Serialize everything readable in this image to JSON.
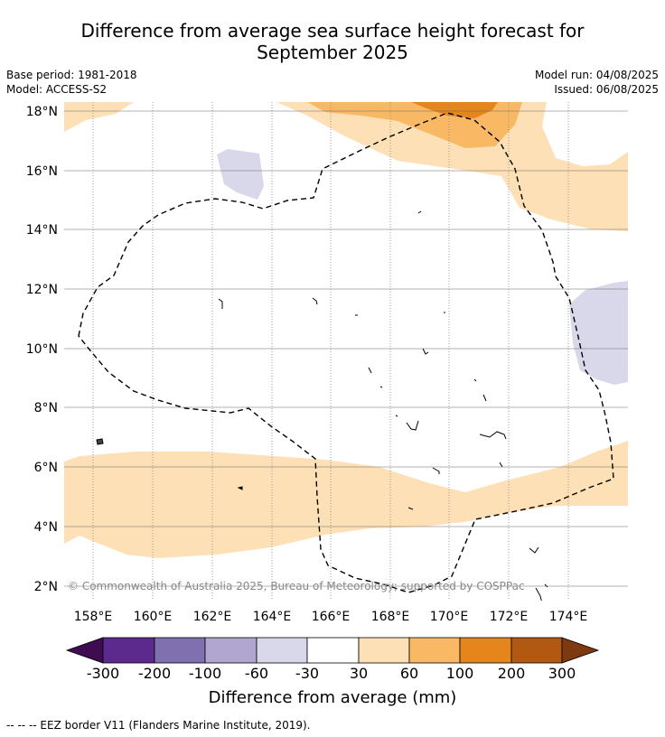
{
  "title": {
    "line1": "Difference from average sea surface height forecast for",
    "line2": "September 2025"
  },
  "meta": {
    "base_period": "Base period: 1981-2018",
    "model": "Model: ACCESS-S2",
    "model_run": "Model run: 04/08/2025",
    "issued": "Issued: 06/08/2025"
  },
  "map": {
    "lat_labels": [
      "18°N",
      "16°N",
      "14°N",
      "12°N",
      "10°N",
      "8°N",
      "6°N",
      "4°N",
      "2°N"
    ],
    "lon_labels": [
      "158°E",
      "160°E",
      "162°E",
      "164°E",
      "166°E",
      "168°E",
      "170°E",
      "172°E",
      "174°E"
    ],
    "copyright": "© Commonwealth of Australia 2025, Bureau of Meteorology; supported by COSPPac",
    "colors": {
      "light_orange": "#fde0b5",
      "mid_orange": "#f9b863",
      "dark_orange": "#e5861c",
      "light_purple": "#d8d8ea"
    }
  },
  "colorbar": {
    "labels": [
      "-300",
      "-200",
      "-100",
      "-60",
      "-30",
      "30",
      "60",
      "100",
      "200",
      "300"
    ],
    "colors": [
      "#3f0c52",
      "#5c2a8c",
      "#8170b0",
      "#b0a6d0",
      "#d9d8ea",
      "#ffffff",
      "#fde0b5",
      "#f9b863",
      "#e5861c",
      "#b35810",
      "#7e3a0e"
    ],
    "title": "Difference from average (mm)"
  },
  "footnote": "--  --  -- EEZ border V11 (Flanders Marine Institute, 2019)."
}
